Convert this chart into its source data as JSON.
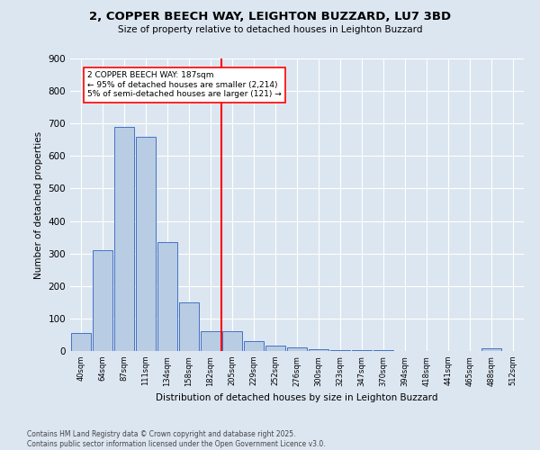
{
  "title": "2, COPPER BEECH WAY, LEIGHTON BUZZARD, LU7 3BD",
  "subtitle": "Size of property relative to detached houses in Leighton Buzzard",
  "xlabel": "Distribution of detached houses by size in Leighton Buzzard",
  "ylabel": "Number of detached properties",
  "footer_line1": "Contains HM Land Registry data © Crown copyright and database right 2025.",
  "footer_line2": "Contains public sector information licensed under the Open Government Licence v3.0.",
  "bins": [
    "40sqm",
    "64sqm",
    "87sqm",
    "111sqm",
    "134sqm",
    "158sqm",
    "182sqm",
    "205sqm",
    "229sqm",
    "252sqm",
    "276sqm",
    "300sqm",
    "323sqm",
    "347sqm",
    "370sqm",
    "394sqm",
    "418sqm",
    "441sqm",
    "465sqm",
    "488sqm",
    "512sqm"
  ],
  "values": [
    55,
    310,
    690,
    660,
    335,
    150,
    60,
    60,
    30,
    18,
    10,
    5,
    4,
    3,
    2,
    1,
    1,
    0,
    0,
    8,
    0
  ],
  "bar_color": "#b8cce4",
  "bar_edge_color": "#4472c4",
  "background_color": "#dce6f1",
  "grid_color": "#ffffff",
  "vline_x": 6.5,
  "vline_color": "#ff0000",
  "annotation_title": "2 COPPER BEECH WAY: 187sqm",
  "annotation_line1": "← 95% of detached houses are smaller (2,214)",
  "annotation_line2": "5% of semi-detached houses are larger (121) →",
  "ylim": [
    0,
    900
  ],
  "yticks": [
    0,
    100,
    200,
    300,
    400,
    500,
    600,
    700,
    800,
    900
  ]
}
